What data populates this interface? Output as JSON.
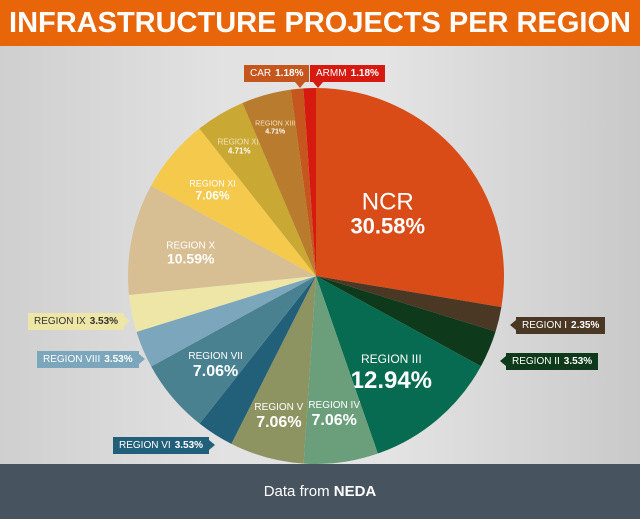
{
  "header": {
    "title": "INFRASTRUCTURE PROJECTS PER REGION"
  },
  "footer": {
    "prefix": "Data from",
    "source": "NEDA"
  },
  "chart_data": {
    "type": "pie",
    "title": "INFRASTRUCTURE PROJECTS PER REGION",
    "start": "12 o'clock, clockwise",
    "slices": [
      {
        "label": "NCR",
        "value": 30.58,
        "display": "30.58%",
        "color": "#d94b17"
      },
      {
        "label": "REGION I",
        "value": 2.35,
        "display": "2.35%",
        "color": "#4a3724"
      },
      {
        "label": "REGION II",
        "value": 3.53,
        "display": "3.53%",
        "color": "#0e3a1b"
      },
      {
        "label": "REGION III",
        "value": 12.94,
        "display": "12.94%",
        "color": "#066b50"
      },
      {
        "label": "REGION IV",
        "value": 7.06,
        "display": "7.06%",
        "color": "#6b9e7b"
      },
      {
        "label": "REGION V",
        "value": 7.06,
        "display": "7.06%",
        "color": "#8e9362"
      },
      {
        "label": "REGION VI",
        "value": 3.53,
        "display": "3.53%",
        "color": "#22607a"
      },
      {
        "label": "REGION VII",
        "value": 7.06,
        "display": "7.06%",
        "color": "#4a8191"
      },
      {
        "label": "REGION VIII",
        "value": 3.53,
        "display": "3.53%",
        "color": "#7ba6bb"
      },
      {
        "label": "REGION IX",
        "value": 3.53,
        "display": "3.53%",
        "color": "#ede6a7"
      },
      {
        "label": "REGION X",
        "value": 10.59,
        "display": "10.59%",
        "color": "#d8be93"
      },
      {
        "label": "REGION XI",
        "value": 7.06,
        "display": "7.06%",
        "color": "#f5c94c"
      },
      {
        "label": "REGION XII",
        "value": 4.71,
        "display": "4.71%",
        "color": "#c9a833"
      },
      {
        "label": "REGION XIII",
        "value": 4.71,
        "display": "4.71%",
        "color": "#b97b2d"
      },
      {
        "label": "CAR",
        "value": 1.18,
        "display": "1.18%",
        "color": "#c4561e"
      },
      {
        "label": "ARMM",
        "value": 1.18,
        "display": "1.18%",
        "color": "#d71a10"
      }
    ]
  }
}
